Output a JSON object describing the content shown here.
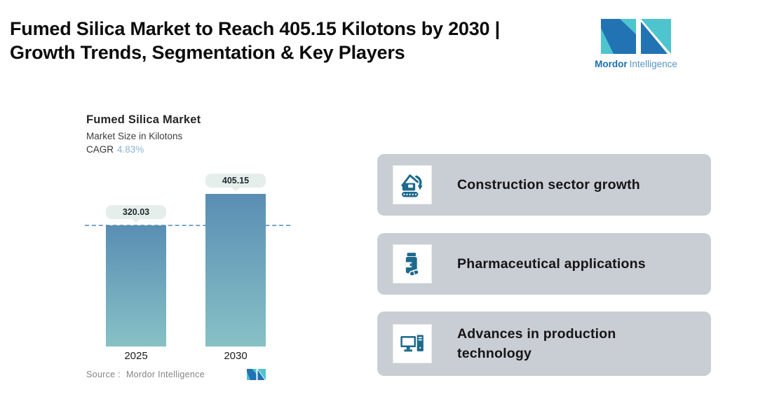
{
  "header": {
    "title_line1": "Fumed Silica Market to Reach 405.15 Kilotons by 2030 |",
    "title_line2": "Growth Trends, Segmentation & Key Players"
  },
  "brand": {
    "name_bold": "Mordor",
    "name_regular": "Intelligence",
    "teal": "#4ec5ce",
    "blue": "#2173b4"
  },
  "chart": {
    "title": "Fumed Silica Market",
    "subtitle": "Market Size in Kilotons",
    "cagr_label": "CAGR",
    "cagr_value": "4.83%",
    "source_label": "Source :",
    "source_value": "Mordor Intelligence"
  },
  "chart_data": {
    "type": "bar",
    "categories": [
      "2025",
      "2030"
    ],
    "values": [
      320.03,
      405.15
    ],
    "value_labels": [
      "320.03",
      "405.15"
    ],
    "title": "Fumed Silica Market",
    "ylabel": "Market Size in Kilotons",
    "cagr_pct": 4.83,
    "ylim": [
      0,
      430
    ],
    "grid": false,
    "legend": false,
    "reference_line_value": 320.03,
    "bar_color_top": "#5a8eb3",
    "bar_color_bottom": "#87c1c6",
    "reference_line_color": "#7ba6c9",
    "value_pill_bg": "#e6eeec"
  },
  "highlights": {
    "card_bg": "#c9cdd4",
    "icon_color": "#1e6a8c",
    "cards": [
      {
        "icon": "excavator-icon",
        "label": "Construction sector growth"
      },
      {
        "icon": "pill-bottle-icon",
        "label": "Pharmaceutical applications"
      },
      {
        "icon": "computer-icon",
        "label": "Advances in production technology"
      }
    ]
  }
}
